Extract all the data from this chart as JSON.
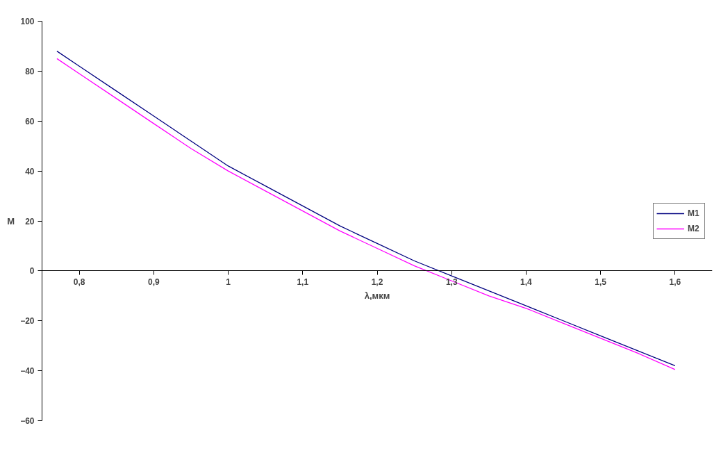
{
  "chart_data": {
    "type": "line",
    "xlabel": "λ,мкм",
    "ylabel": "M",
    "x": [
      0.77,
      0.8,
      0.85,
      0.9,
      0.95,
      1.0,
      1.05,
      1.1,
      1.15,
      1.2,
      1.25,
      1.3,
      1.35,
      1.4,
      1.45,
      1.5,
      1.55,
      1.6
    ],
    "series": [
      {
        "name": "M1",
        "color": "#000080",
        "values": [
          88,
          82,
          72,
          62,
          52,
          42,
          34,
          26,
          18,
          11,
          4,
          -2,
          -8,
          -14,
          -20,
          -26,
          -32,
          -38
        ]
      },
      {
        "name": "M2",
        "color": "#ff00ff",
        "values": [
          85,
          79,
          69,
          59,
          49,
          40,
          32,
          24,
          16,
          9,
          2,
          -4,
          -10,
          -15,
          -21,
          -27,
          -33,
          -39.5
        ]
      }
    ],
    "xlim": [
      0.75,
      1.65
    ],
    "xticks": [
      {
        "value": 0.8,
        "label": "0,8"
      },
      {
        "value": 0.9,
        "label": "0,9"
      },
      1,
      {
        "value": 1.1,
        "label": "1,1"
      },
      {
        "value": 1.2,
        "label": "1,2"
      },
      {
        "value": 1.3,
        "label": "1,3"
      },
      {
        "value": 1.4,
        "label": "1,4"
      },
      {
        "value": 1.5,
        "label": "1,5"
      },
      {
        "value": 1.6,
        "label": "1,6"
      }
    ],
    "ylim": [
      -60,
      100
    ],
    "yticks": [
      -60,
      -40,
      -20,
      0,
      20,
      40,
      60,
      80,
      100
    ],
    "grid": false,
    "legend": "right",
    "marker": "none",
    "line_style": "solid"
  }
}
